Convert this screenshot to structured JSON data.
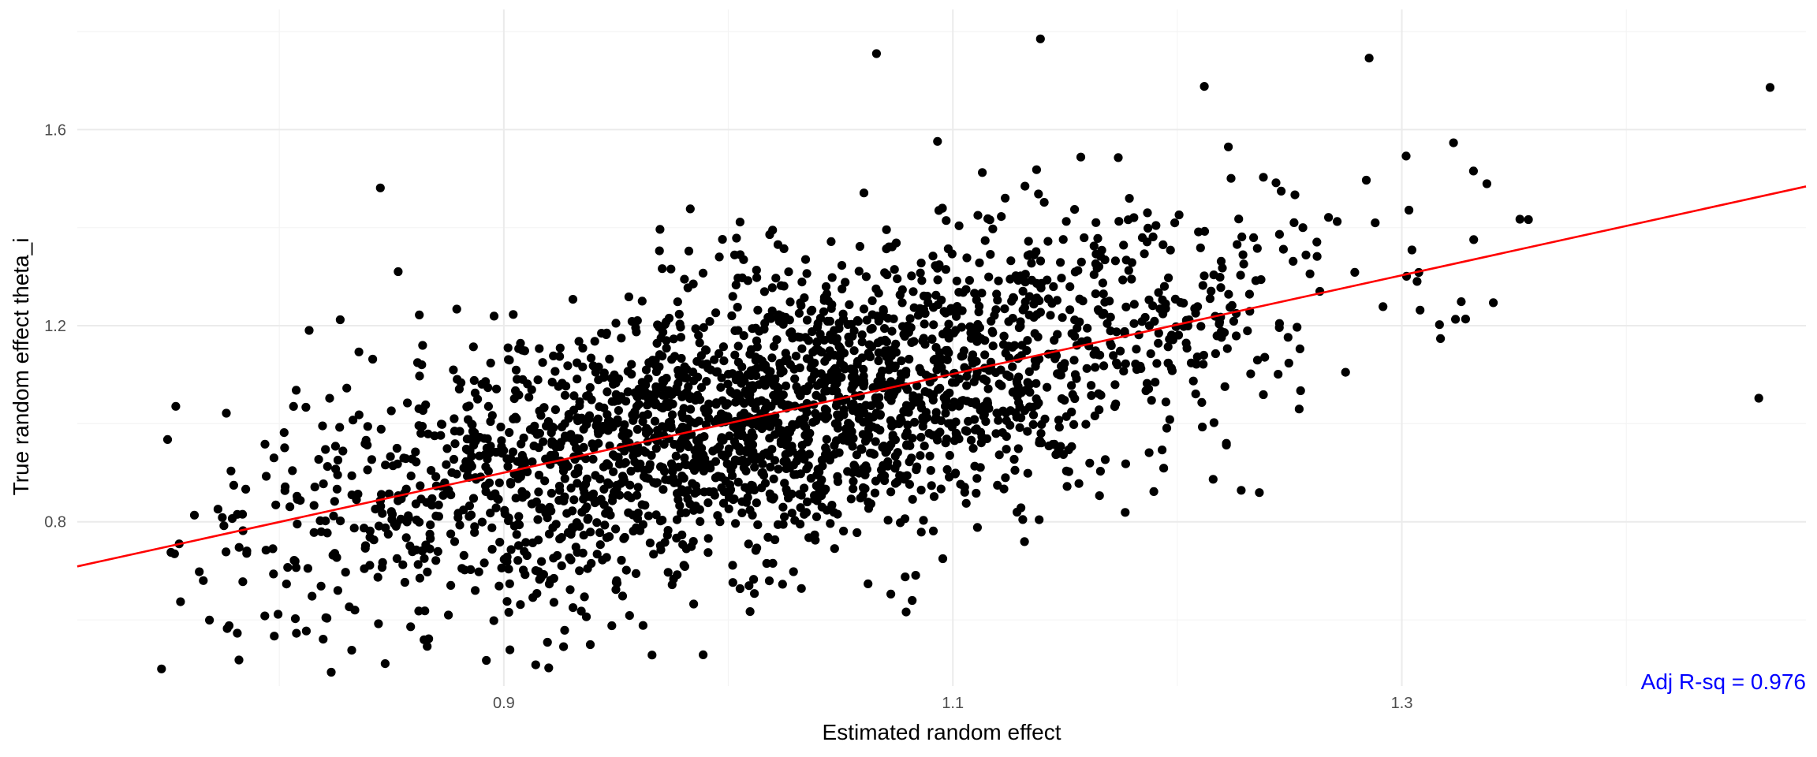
{
  "chart_data": {
    "type": "scatter",
    "title": "",
    "xlabel": "Estimated random effect",
    "ylabel": "True random effect theta_i",
    "xlim": [
      0.71,
      1.48
    ],
    "ylim": [
      0.465,
      1.845
    ],
    "x_ticks": [
      0.9,
      1.1,
      1.3
    ],
    "x_tick_labels": [
      "0.9",
      "1.1",
      "1.3"
    ],
    "y_ticks": [
      0.8,
      1.2,
      1.6
    ],
    "y_tick_labels": [
      "0.8",
      "1.2",
      "1.6"
    ],
    "grid": true,
    "legend": "none",
    "annotation": {
      "text": "Adj R-sq = 0.976",
      "position": "bottom-right",
      "color": "#0000ff"
    },
    "point_color": "#000000",
    "fit_line": {
      "color": "#ff0000",
      "x": [
        0.71,
        1.48
      ],
      "y": [
        0.709,
        1.484
      ]
    },
    "points": {
      "description_count": 2600,
      "x_mean": 1.02,
      "x_sd": 0.11,
      "y_mean": 1.0,
      "y_sd": 0.17,
      "notable": [
        {
          "x": 1.139,
          "y": 1.785
        },
        {
          "x": 1.066,
          "y": 1.755
        },
        {
          "x": 1.464,
          "y": 1.686
        },
        {
          "x": 1.459,
          "y": 1.052
        },
        {
          "x": 1.212,
          "y": 1.688
        },
        {
          "x": 0.845,
          "y": 1.481
        },
        {
          "x": 0.92,
          "y": 0.502
        },
        {
          "x": 0.782,
          "y": 0.518
        },
        {
          "x": 1.323,
          "y": 1.573
        }
      ]
    }
  }
}
